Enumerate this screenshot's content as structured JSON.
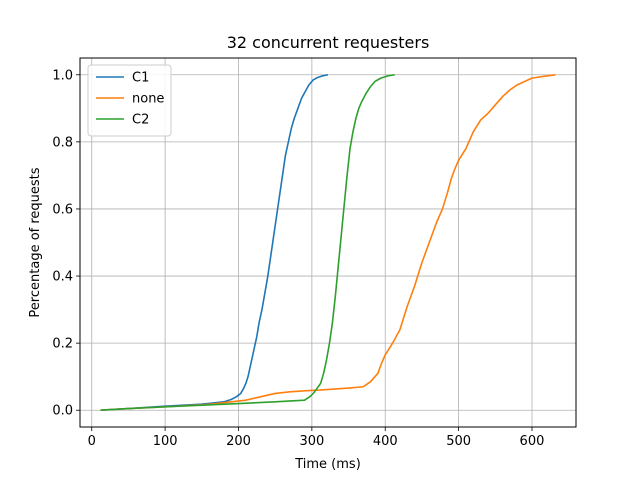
{
  "chart_data": {
    "type": "line",
    "title": "32 concurrent requesters",
    "xlabel": "Time (ms)",
    "ylabel": "Percentage of requests",
    "xlim": [
      -16,
      660
    ],
    "ylim": [
      -0.05,
      1.05
    ],
    "xticks": [
      0,
      100,
      200,
      300,
      400,
      500,
      600
    ],
    "yticks": [
      0.0,
      0.2,
      0.4,
      0.6,
      0.8,
      1.0
    ],
    "xtick_labels": [
      "0",
      "100",
      "200",
      "300",
      "400",
      "500",
      "600"
    ],
    "ytick_labels": [
      "0.0",
      "0.2",
      "0.4",
      "0.6",
      "0.8",
      "1.0"
    ],
    "grid": true,
    "legend_position": "upper-left",
    "series": [
      {
        "name": "C1",
        "color": "#1f77b4",
        "x": [
          12,
          50,
          100,
          150,
          180,
          190,
          197,
          203,
          207,
          210,
          213,
          216,
          219,
          222,
          225,
          228,
          232,
          236,
          240,
          244,
          248,
          252,
          256,
          260,
          264,
          268,
          272,
          276,
          281,
          286,
          291,
          296,
          302,
          308,
          315,
          322
        ],
        "y": [
          0.0,
          0.005,
          0.012,
          0.018,
          0.025,
          0.032,
          0.04,
          0.05,
          0.065,
          0.08,
          0.1,
          0.13,
          0.16,
          0.19,
          0.22,
          0.26,
          0.3,
          0.35,
          0.4,
          0.46,
          0.52,
          0.58,
          0.64,
          0.7,
          0.76,
          0.8,
          0.84,
          0.87,
          0.9,
          0.93,
          0.95,
          0.97,
          0.985,
          0.992,
          0.997,
          1.0
        ]
      },
      {
        "name": "none",
        "color": "#ff7f0e",
        "x": [
          12,
          50,
          100,
          150,
          170,
          190,
          210,
          230,
          250,
          270,
          290,
          310,
          330,
          350,
          370,
          380,
          390,
          395,
          400,
          410,
          420,
          430,
          440,
          450,
          460,
          470,
          478,
          485,
          490,
          495,
          500,
          510,
          520,
          530,
          540,
          550,
          560,
          570,
          580,
          590,
          600,
          615,
          632
        ],
        "y": [
          0.0,
          0.005,
          0.01,
          0.016,
          0.02,
          0.025,
          0.03,
          0.04,
          0.05,
          0.055,
          0.058,
          0.06,
          0.063,
          0.066,
          0.07,
          0.085,
          0.11,
          0.14,
          0.165,
          0.2,
          0.24,
          0.31,
          0.37,
          0.44,
          0.5,
          0.56,
          0.6,
          0.65,
          0.69,
          0.72,
          0.745,
          0.78,
          0.83,
          0.865,
          0.885,
          0.91,
          0.935,
          0.955,
          0.97,
          0.98,
          0.99,
          0.995,
          1.0
        ]
      },
      {
        "name": "C2",
        "color": "#2ca02c",
        "x": [
          12,
          50,
          100,
          150,
          200,
          250,
          290,
          297,
          302,
          307,
          312,
          316,
          320,
          324,
          328,
          332,
          336,
          340,
          344,
          348,
          352,
          356,
          360,
          364,
          368,
          374,
          380,
          386,
          394,
          404,
          413
        ],
        "y": [
          0.0,
          0.005,
          0.01,
          0.015,
          0.02,
          0.025,
          0.03,
          0.04,
          0.05,
          0.065,
          0.08,
          0.11,
          0.15,
          0.2,
          0.26,
          0.34,
          0.43,
          0.52,
          0.61,
          0.7,
          0.78,
          0.83,
          0.87,
          0.9,
          0.92,
          0.945,
          0.965,
          0.98,
          0.99,
          0.997,
          1.0
        ]
      }
    ]
  }
}
